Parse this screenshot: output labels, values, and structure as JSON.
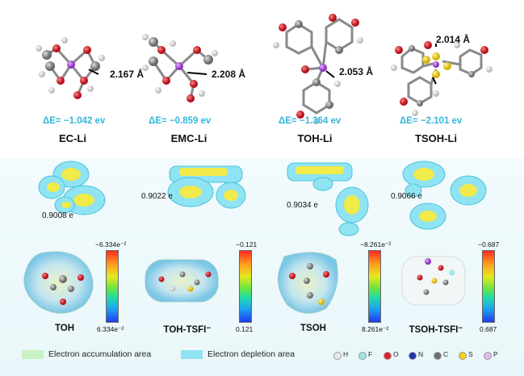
{
  "molecules": [
    {
      "name": "EC-Li",
      "delta_e": "ΔE= −1.042 ev",
      "distance": "2.167 Å",
      "charge": "0.9008 e"
    },
    {
      "name": "EMC-Li",
      "delta_e": "ΔE= −0.859 ev",
      "distance": "2.208 Å",
      "charge": "0.9022 e"
    },
    {
      "name": "TOH-Li",
      "delta_e": "ΔE= −1.364 ev",
      "distance": "2.053 Å",
      "charge": "0.9034 e"
    },
    {
      "name": "TSOH-Li",
      "delta_e": "ΔE= −2.101 ev",
      "distance": "2.014 Å",
      "charge": "0.9066 e"
    }
  ],
  "esp": [
    {
      "name": "TOH",
      "top": "−6.334e⁻²",
      "bottom": "6.334e⁻²"
    },
    {
      "name": "TOH-TSFI⁻",
      "top": "−0.121",
      "bottom": "0.121"
    },
    {
      "name": "TSOH",
      "top": "−8.261e⁻²",
      "bottom": "8.261e⁻²"
    },
    {
      "name": "TSOH-TSFI⁻",
      "top": "−0.687",
      "bottom": "0.687"
    }
  ],
  "legend": {
    "accumulation": "Electron accumulation area",
    "depletion": "Electron depletion area",
    "accumulation_color": "#c9f2c2",
    "depletion_color": "#8fe3f2",
    "atoms": [
      {
        "label": "H",
        "color": "#e9e9e9"
      },
      {
        "label": "F",
        "color": "#9ae8e8"
      },
      {
        "label": "O",
        "color": "#e0202a"
      },
      {
        "label": "N",
        "color": "#2233aa"
      },
      {
        "label": "C",
        "color": "#707070"
      },
      {
        "label": "S",
        "color": "#f2d21c"
      },
      {
        "label": "P",
        "color": "#e6b6ee"
      }
    ]
  }
}
